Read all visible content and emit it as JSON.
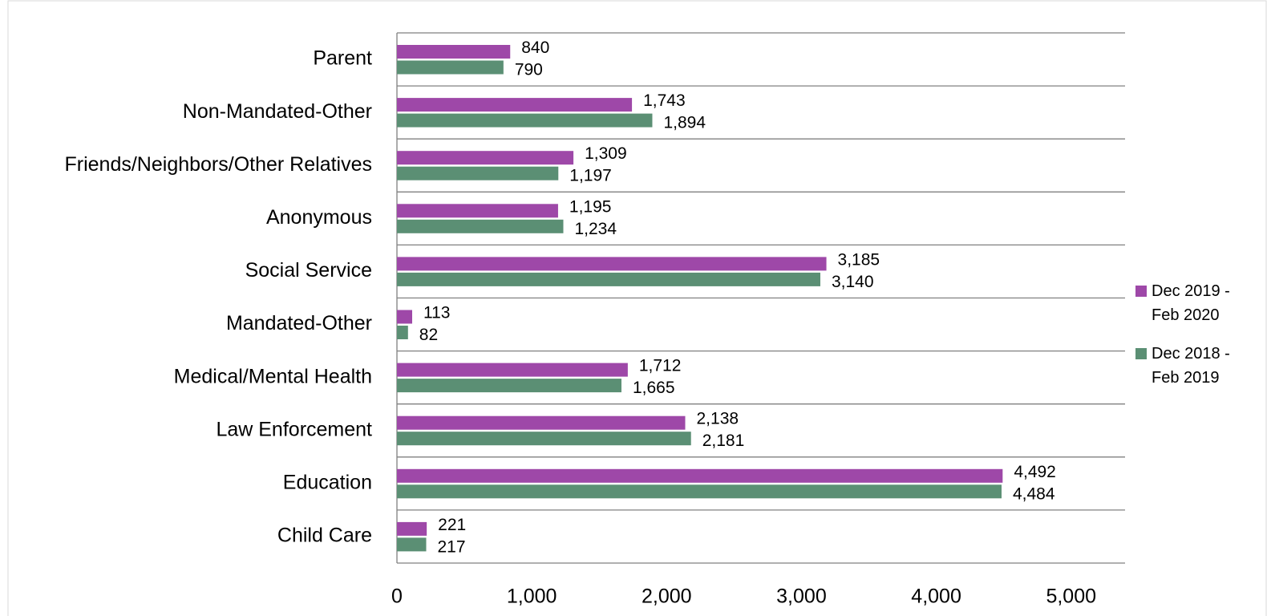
{
  "chart_data": {
    "type": "hbar",
    "categories": [
      "Parent",
      "Non-Mandated-Other",
      "Friends/Neighbors/Other Relatives",
      "Anonymous",
      "Social Service",
      "Mandated-Other",
      "Medical/Mental Health",
      "Law Enforcement",
      "Education",
      "Child Care"
    ],
    "series": [
      {
        "name": "Dec 2019 - Feb 2020",
        "color": "#9e48a8",
        "values": [
          840,
          1743,
          1309,
          1195,
          3185,
          113,
          1712,
          2138,
          4492,
          221
        ],
        "value_labels": [
          "840",
          "1,743",
          "1,309",
          "1,195",
          "3,185",
          "113",
          "1,712",
          "2,138",
          "4,492",
          "221"
        ]
      },
      {
        "name": "Dec 2018 - Feb 2019",
        "color": "#5b8f74",
        "values": [
          790,
          1894,
          1197,
          1234,
          3140,
          82,
          1665,
          2181,
          4484,
          217
        ],
        "value_labels": [
          "790",
          "1,894",
          "1,197",
          "1,234",
          "3,140",
          "82",
          "1,665",
          "2,181",
          "4,484",
          "217"
        ]
      }
    ],
    "xlim": [
      0,
      5400
    ],
    "xticks": [
      0,
      {
        "value": 1000,
        "label": "1,000"
      },
      {
        "value": 2000,
        "label": "2,000"
      },
      {
        "value": 3000,
        "label": "3,000"
      },
      {
        "value": 4000,
        "label": "4,000"
      },
      {
        "value": 5000,
        "label": "5,000"
      }
    ],
    "legend": "right"
  }
}
